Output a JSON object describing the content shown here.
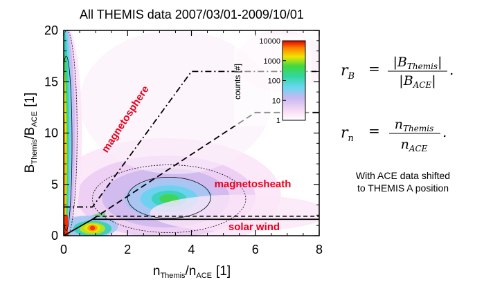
{
  "chart_data": {
    "type": "heatmap",
    "title": "All THEMIS data 2007/03/01-2009/10/01",
    "xlabel": {
      "main": "n",
      "sub1": "Themis",
      "sep": "/n",
      "sub2": "ACE",
      "unit": "[1]"
    },
    "ylabel": {
      "main": "B",
      "sub1": "Themis",
      "sep": "/B",
      "sub2": "ACE",
      "unit": "[1]"
    },
    "xlim": [
      0,
      8
    ],
    "ylim": [
      0,
      20
    ],
    "xticks": [
      "0",
      "2",
      "4",
      "6",
      "8"
    ],
    "yticks": [
      "0",
      "5",
      "10",
      "15",
      "20"
    ],
    "colorbar": {
      "label": "counts [#]",
      "scale": "log",
      "range": [
        1,
        10000
      ],
      "ticks": [
        "10000",
        "1000",
        "100",
        "10",
        "1"
      ]
    },
    "regions": [
      "magnetosphere",
      "magnetosheath",
      "solar wind"
    ],
    "boundaries": [
      {
        "name": "solid",
        "points": [
          [
            0,
            0
          ],
          [
            0.9,
            1.6
          ],
          [
            8,
            1.6
          ]
        ]
      },
      {
        "name": "dash-dot",
        "points": [
          [
            0,
            2.8
          ],
          [
            0.9,
            2.8
          ],
          [
            4,
            16
          ],
          [
            8,
            16
          ]
        ]
      },
      {
        "name": "dashed",
        "points": [
          [
            0.9,
            1.6
          ],
          [
            6,
            12
          ],
          [
            8,
            12
          ]
        ]
      },
      {
        "name": "short-dashed",
        "points": [
          [
            1,
            1.9
          ],
          [
            8,
            1.9
          ]
        ]
      }
    ],
    "density_clusters": [
      {
        "name": "magnetosphere-core",
        "x": 0.12,
        "y": 7.5,
        "peak": 10000
      },
      {
        "name": "solar-wind-core",
        "x": 1.0,
        "y": 0.8,
        "peak": 10000
      },
      {
        "name": "magnetosheath-core",
        "x": 3.3,
        "y": 3.6,
        "peak": 800
      }
    ]
  },
  "formulas": {
    "rB": {
      "lhs": "r",
      "lhs_sub": "B",
      "num": "|B",
      "num_sub": "Themis",
      "den": "|B",
      "den_sub": "ACE"
    },
    "rn": {
      "lhs": "r",
      "lhs_sub": "n",
      "num": "n",
      "num_sub": "Themis",
      "den": "n",
      "den_sub": "ACE"
    }
  },
  "note": {
    "line1": "With ACE data shifted",
    "line2": "to THEMIS A position"
  }
}
